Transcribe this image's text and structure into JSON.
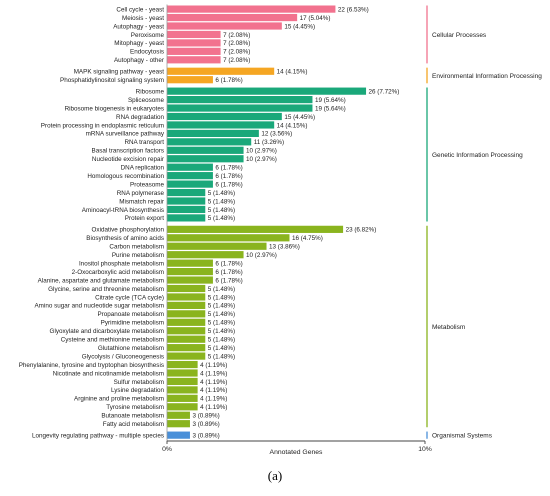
{
  "chart_data": {
    "type": "bar",
    "orientation": "horizontal",
    "xlabel": "Annotated Genes",
    "xlim": [
      0,
      10
    ],
    "x_tick_labels": [
      "0%",
      "10%"
    ],
    "grid": false,
    "groups": [
      {
        "name": "Cellular Processes",
        "color": "#f2728e",
        "items": [
          {
            "label": "Cell cycle - yeast",
            "count": 22,
            "value_label": "22 (6.53%)"
          },
          {
            "label": "Meiosis - yeast",
            "count": 17,
            "value_label": "17 (5.04%)"
          },
          {
            "label": "Autophagy - yeast",
            "count": 15,
            "value_label": "15 (4.45%)"
          },
          {
            "label": "Peroxisome",
            "count": 7,
            "value_label": "7 (2.08%)"
          },
          {
            "label": "Mitophagy - yeast",
            "count": 7,
            "value_label": "7 (2.08%)"
          },
          {
            "label": "Endocytosis",
            "count": 7,
            "value_label": "7 (2.08%)"
          },
          {
            "label": "Autophagy - other",
            "count": 7,
            "value_label": "7 (2.08%)"
          }
        ]
      },
      {
        "name": "Environmental Information Processing",
        "color": "#f5a623",
        "items": [
          {
            "label": "MAPK signaling pathway - yeast",
            "count": 14,
            "value_label": "14 (4.15%)"
          },
          {
            "label": "Phosphatidylinositol signaling system",
            "count": 6,
            "value_label": "6 (1.78%)"
          }
        ]
      },
      {
        "name": "Genetic Information Processing",
        "color": "#1aa87a",
        "items": [
          {
            "label": "Ribosome",
            "count": 26,
            "value_label": "26 (7.72%)"
          },
          {
            "label": "Spliceosome",
            "count": 19,
            "value_label": "19 (5.64%)"
          },
          {
            "label": "Ribosome biogenesis in eukaryotes",
            "count": 19,
            "value_label": "19 (5.64%)"
          },
          {
            "label": "RNA degradation",
            "count": 15,
            "value_label": "15 (4.45%)"
          },
          {
            "label": "Protein processing in endoplasmic reticulum",
            "count": 14,
            "value_label": "14 (4.15%)"
          },
          {
            "label": "mRNA surveillance pathway",
            "count": 12,
            "value_label": "12 (3.56%)"
          },
          {
            "label": "RNA transport",
            "count": 11,
            "value_label": "11 (3.26%)"
          },
          {
            "label": "Basal transcription factors",
            "count": 10,
            "value_label": "10 (2.97%)"
          },
          {
            "label": "Nucleotide excision repair",
            "count": 10,
            "value_label": "10 (2.97%)"
          },
          {
            "label": "DNA replication",
            "count": 6,
            "value_label": "6 (1.78%)"
          },
          {
            "label": "Homologous recombination",
            "count": 6,
            "value_label": "6 (1.78%)"
          },
          {
            "label": "Proteasome",
            "count": 6,
            "value_label": "6 (1.78%)"
          },
          {
            "label": "RNA polymerase",
            "count": 5,
            "value_label": "5 (1.48%)"
          },
          {
            "label": "Mismatch repair",
            "count": 5,
            "value_label": "5 (1.48%)"
          },
          {
            "label": "Aminoacyl-tRNA biosynthesis",
            "count": 5,
            "value_label": "5 (1.48%)"
          },
          {
            "label": "Protein export",
            "count": 5,
            "value_label": "5 (1.48%)"
          }
        ]
      },
      {
        "name": "Metabolism",
        "color": "#8ab41e",
        "items": [
          {
            "label": "Oxidative phosphorylation",
            "count": 23,
            "value_label": "23 (6.82%)"
          },
          {
            "label": "Biosynthesis of amino acids",
            "count": 16,
            "value_label": "16 (4.75%)"
          },
          {
            "label": "Carbon metabolism",
            "count": 13,
            "value_label": "13 (3.86%)"
          },
          {
            "label": "Purine metabolism",
            "count": 10,
            "value_label": "10 (2.97%)"
          },
          {
            "label": "Inositol phosphate metabolism",
            "count": 6,
            "value_label": "6 (1.78%)"
          },
          {
            "label": "2-Oxocarboxylic acid metabolism",
            "count": 6,
            "value_label": "6 (1.78%)"
          },
          {
            "label": "Alanine, aspartate and glutamate metabolism",
            "count": 6,
            "value_label": "6 (1.78%)"
          },
          {
            "label": "Glycine, serine and threonine metabolism",
            "count": 5,
            "value_label": "5 (1.48%)"
          },
          {
            "label": "Citrate cycle (TCA cycle)",
            "count": 5,
            "value_label": "5 (1.48%)"
          },
          {
            "label": "Amino sugar and nucleotide sugar metabolism",
            "count": 5,
            "value_label": "5 (1.48%)"
          },
          {
            "label": "Propanoate metabolism",
            "count": 5,
            "value_label": "5 (1.48%)"
          },
          {
            "label": "Pyrimidine metabolism",
            "count": 5,
            "value_label": "5 (1.48%)"
          },
          {
            "label": "Glyoxylate and dicarboxylate metabolism",
            "count": 5,
            "value_label": "5 (1.48%)"
          },
          {
            "label": "Cysteine and methionine metabolism",
            "count": 5,
            "value_label": "5 (1.48%)"
          },
          {
            "label": "Glutathione metabolism",
            "count": 5,
            "value_label": "5 (1.48%)"
          },
          {
            "label": "Glycolysis / Gluconeogenesis",
            "count": 5,
            "value_label": "5 (1.48%)"
          },
          {
            "label": "Phenylalanine, tyrosine and tryptophan biosynthesis",
            "count": 4,
            "value_label": "4 (1.19%)"
          },
          {
            "label": "Nicotinate and nicotinamide metabolism",
            "count": 4,
            "value_label": "4 (1.19%)"
          },
          {
            "label": "Sulfur metabolism",
            "count": 4,
            "value_label": "4 (1.19%)"
          },
          {
            "label": "Lysine degradation",
            "count": 4,
            "value_label": "4 (1.19%)"
          },
          {
            "label": "Arginine and proline metabolism",
            "count": 4,
            "value_label": "4 (1.19%)"
          },
          {
            "label": "Tyrosine metabolism",
            "count": 4,
            "value_label": "4 (1.19%)"
          },
          {
            "label": "Butanoate metabolism",
            "count": 3,
            "value_label": "3 (0.89%)"
          },
          {
            "label": "Fatty acid metabolism",
            "count": 3,
            "value_label": "3 (0.89%)"
          }
        ]
      },
      {
        "name": "Organismal Systems",
        "color": "#4a90d9",
        "items": [
          {
            "label": "Longevity regulating pathway - multiple species",
            "count": 3,
            "value_label": "3 (0.89%)"
          }
        ]
      }
    ]
  },
  "caption": "(a)"
}
